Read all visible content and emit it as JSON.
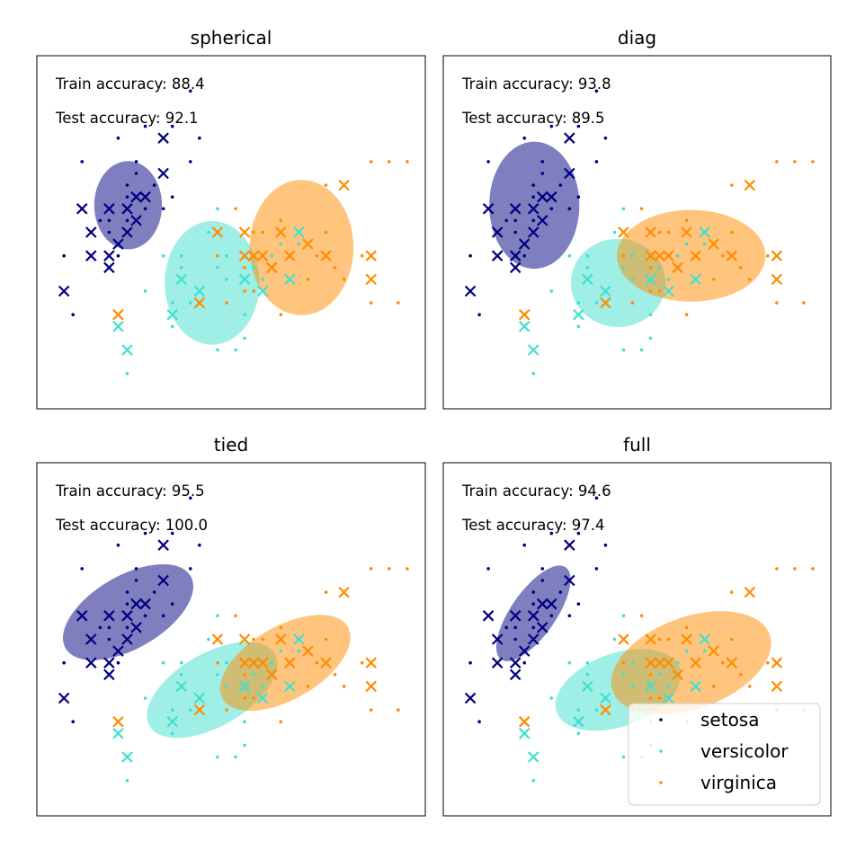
{
  "chart_data": {
    "type": "scatter",
    "title": "",
    "xlabel": "",
    "ylabel": "",
    "xlim": [
      4.0,
      8.3
    ],
    "ylim": [
      1.7,
      4.7
    ],
    "grid": false,
    "ticks": "none",
    "colors": {
      "setosa": "#000080",
      "versicolor": "#40e0d0",
      "virginica": "#ff8c00"
    },
    "legend": {
      "placement": "lower-right",
      "panel": "full",
      "entries": [
        "setosa",
        "versicolor",
        "virginica"
      ]
    },
    "train_points": {
      "setosa": [
        [
          4.5,
          3.8
        ],
        [
          4.6,
          3.2
        ],
        [
          4.7,
          3.3
        ],
        [
          4.8,
          3.3
        ],
        [
          4.9,
          3.0
        ],
        [
          4.9,
          4.0
        ],
        [
          5.0,
          3.5
        ],
        [
          5.0,
          3.6
        ],
        [
          5.1,
          3.5
        ],
        [
          5.1,
          3.8
        ],
        [
          5.2,
          3.4
        ],
        [
          5.3,
          3.6
        ],
        [
          5.4,
          3.7
        ],
        [
          5.5,
          4.1
        ],
        [
          5.5,
          3.5
        ],
        [
          5.7,
          4.4
        ],
        [
          5.7,
          3.8
        ],
        [
          4.8,
          3.2
        ],
        [
          5.0,
          3.3
        ],
        [
          4.3,
          3.0
        ],
        [
          5.4,
          3.4
        ],
        [
          5.1,
          3.7
        ],
        [
          4.4,
          2.5
        ],
        [
          5.8,
          4.0
        ],
        [
          5.2,
          4.1
        ]
      ],
      "versicolor": [
        [
          5.0,
          2.0
        ],
        [
          5.2,
          2.7
        ],
        [
          5.5,
          2.4
        ],
        [
          5.6,
          2.9
        ],
        [
          5.7,
          2.6
        ],
        [
          5.8,
          2.7
        ],
        [
          6.0,
          2.2
        ],
        [
          6.0,
          2.9
        ],
        [
          6.1,
          2.8
        ],
        [
          6.2,
          2.2
        ],
        [
          6.3,
          2.5
        ],
        [
          6.3,
          2.3
        ],
        [
          6.4,
          2.9
        ],
        [
          6.5,
          2.8
        ],
        [
          6.6,
          3.0
        ],
        [
          6.7,
          3.1
        ],
        [
          5.9,
          3.2
        ],
        [
          6.1,
          3.0
        ],
        [
          5.6,
          3.0
        ],
        [
          6.9,
          3.1
        ],
        [
          6.8,
          2.8
        ],
        [
          5.4,
          3.0
        ],
        [
          6.0,
          3.4
        ],
        [
          5.5,
          2.6
        ]
      ],
      "virginica": [
        [
          6.3,
          2.9
        ],
        [
          6.4,
          2.7
        ],
        [
          6.5,
          3.0
        ],
        [
          6.7,
          2.5
        ],
        [
          6.8,
          3.0
        ],
        [
          6.9,
          3.2
        ],
        [
          7.0,
          2.8
        ],
        [
          7.2,
          3.2
        ],
        [
          7.3,
          2.9
        ],
        [
          7.4,
          2.8
        ],
        [
          7.6,
          3.0
        ],
        [
          7.7,
          2.6
        ],
        [
          7.9,
          3.8
        ],
        [
          7.7,
          3.8
        ],
        [
          6.4,
          3.2
        ],
        [
          6.2,
          3.4
        ],
        [
          6.0,
          3.0
        ],
        [
          6.1,
          2.6
        ],
        [
          7.1,
          3.0
        ],
        [
          6.3,
          2.7
        ],
        [
          8.1,
          3.8
        ],
        [
          7.2,
          3.6
        ],
        [
          6.5,
          3.2
        ],
        [
          6.7,
          3.3
        ],
        [
          8.0,
          2.6
        ]
      ]
    },
    "test_points": {
      "setosa": [
        [
          4.3,
          2.7
        ],
        [
          4.5,
          3.4
        ],
        [
          4.6,
          3.2
        ],
        [
          4.6,
          3.0
        ],
        [
          4.8,
          3.0
        ],
        [
          4.8,
          3.4
        ],
        [
          4.8,
          2.9
        ],
        [
          4.9,
          3.1
        ],
        [
          5.0,
          3.4
        ],
        [
          5.0,
          3.2
        ],
        [
          5.1,
          3.5
        ],
        [
          5.1,
          3.3
        ],
        [
          5.2,
          3.5
        ],
        [
          5.4,
          4.0
        ],
        [
          5.4,
          3.7
        ]
      ],
      "versicolor": [
        [
          4.9,
          2.4
        ],
        [
          5.0,
          2.2
        ],
        [
          5.5,
          2.5
        ],
        [
          5.8,
          2.7
        ],
        [
          5.6,
          2.8
        ],
        [
          6.3,
          2.8
        ],
        [
          6.5,
          2.7
        ],
        [
          6.6,
          2.9
        ],
        [
          6.8,
          2.8
        ],
        [
          6.9,
          3.2
        ]
      ],
      "virginica": [
        [
          4.9,
          2.5
        ],
        [
          5.8,
          2.6
        ],
        [
          6.0,
          3.2
        ],
        [
          6.4,
          3.0
        ],
        [
          6.5,
          3.0
        ],
        [
          6.7,
          3.2
        ],
        [
          6.8,
          3.0
        ],
        [
          7.2,
          3.0
        ],
        [
          7.7,
          2.8
        ],
        [
          7.7,
          3.0
        ],
        [
          6.6,
          2.9
        ],
        [
          7.0,
          3.1
        ],
        [
          6.3,
          3.0
        ],
        [
          7.4,
          3.6
        ],
        [
          6.3,
          3.2
        ]
      ]
    },
    "panels": [
      {
        "title": "spherical",
        "train_label": "Train accuracy: 88.4",
        "test_label": "Test accuracy: 92.1",
        "ellipses": [
          {
            "class": "setosa",
            "center": [
              5.01,
              3.43
            ],
            "width": 0.75,
            "height": 0.75,
            "angle": 0
          },
          {
            "class": "versicolor",
            "center": [
              5.94,
              2.77
            ],
            "width": 1.05,
            "height": 1.05,
            "angle": 0
          },
          {
            "class": "virginica",
            "center": [
              6.93,
              3.07
            ],
            "width": 1.15,
            "height": 1.15,
            "angle": 0
          }
        ]
      },
      {
        "title": "diag",
        "train_label": "Train accuracy: 93.8",
        "test_label": "Test accuracy: 89.5",
        "ellipses": [
          {
            "class": "setosa",
            "center": [
              5.01,
              3.43
            ],
            "width": 1.0,
            "height": 1.08,
            "angle": 0
          },
          {
            "class": "versicolor",
            "center": [
              5.94,
              2.77
            ],
            "width": 1.05,
            "height": 0.75,
            "angle": 0
          },
          {
            "class": "virginica",
            "center": [
              6.75,
              3.0
            ],
            "width": 1.65,
            "height": 0.78,
            "angle": 0
          }
        ]
      },
      {
        "title": "tied",
        "train_label": "Train accuracy: 95.5",
        "test_label": "Test accuracy: 100.0",
        "ellipses": [
          {
            "class": "setosa",
            "center": [
              5.01,
              3.43
            ],
            "width": 1.6,
            "height": 0.62,
            "angle": 30
          },
          {
            "class": "versicolor",
            "center": [
              5.94,
              2.77
            ],
            "width": 1.6,
            "height": 0.62,
            "angle": 30
          },
          {
            "class": "virginica",
            "center": [
              6.75,
              3.0
            ],
            "width": 1.6,
            "height": 0.62,
            "angle": 30
          }
        ]
      },
      {
        "title": "full",
        "train_label": "Train accuracy: 94.6",
        "test_label": "Test accuracy: 97.4",
        "ellipses": [
          {
            "class": "setosa",
            "center": [
              5.0,
              3.42
            ],
            "width": 1.25,
            "height": 0.38,
            "angle": 55
          },
          {
            "class": "versicolor",
            "center": [
              5.94,
              2.77
            ],
            "width": 1.45,
            "height": 0.62,
            "angle": 20
          },
          {
            "class": "virginica",
            "center": [
              6.75,
              3.0
            ],
            "width": 1.85,
            "height": 0.78,
            "angle": 20
          }
        ]
      }
    ]
  }
}
